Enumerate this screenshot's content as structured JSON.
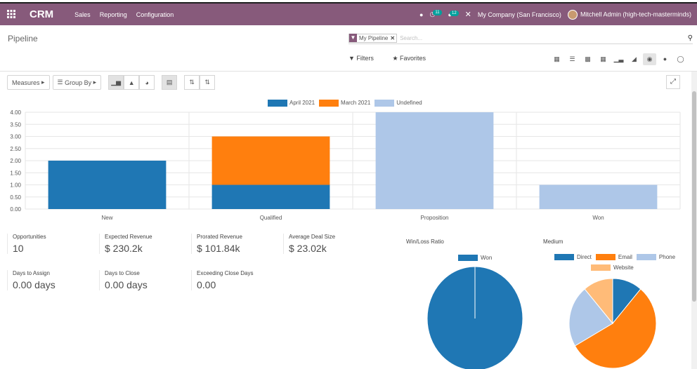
{
  "topbar": {
    "apps_icon": "grid-icon",
    "brand": "CRM",
    "menus": [
      "Sales",
      "Reporting",
      "Configuration"
    ],
    "activity_count": "11",
    "messages_count": "12",
    "company": "My Company (San Francisco)",
    "user": "Mitchell Admin (high-tech-masterminds)"
  },
  "control_panel": {
    "breadcrumb": "Pipeline",
    "facet_label": "My Pipeline",
    "search_placeholder": "Search...",
    "filters_label": "Filters",
    "favorites_label": "Favorites"
  },
  "toolbar": {
    "measures_label": "Measures",
    "groupby_label": "Group By"
  },
  "colors": {
    "brand": "#875a7b",
    "april": "#1f77b4",
    "march": "#ff7f0e",
    "undefined": "#aec7e8",
    "website": "#ffbb78"
  },
  "chart_data": {
    "type": "bar",
    "stacked": true,
    "categories": [
      "New",
      "Qualified",
      "Proposition",
      "Won"
    ],
    "series": [
      {
        "name": "April 2021",
        "values": [
          2,
          1,
          0,
          0
        ],
        "color": "#1f77b4"
      },
      {
        "name": "March 2021",
        "values": [
          0,
          2,
          0,
          0
        ],
        "color": "#ff7f0e"
      },
      {
        "name": "Undefined",
        "values": [
          0,
          0,
          4,
          1
        ],
        "color": "#aec7e8"
      }
    ],
    "ylim": [
      0,
      4
    ],
    "yticks": [
      "0.00",
      "0.50",
      "1.00",
      "1.50",
      "2.00",
      "2.50",
      "3.00",
      "3.50",
      "4.00"
    ],
    "grid": true,
    "legend": "top-center"
  },
  "kpis": [
    {
      "label": "Opportunities",
      "value": "10"
    },
    {
      "label": "Expected Revenue",
      "value": "$ 230.2k"
    },
    {
      "label": "Prorated Revenue",
      "value": "$ 101.84k"
    },
    {
      "label": "Average Deal Size",
      "value": "$ 23.02k"
    },
    {
      "label": "Days to Assign",
      "value": "0.00 days"
    },
    {
      "label": "Days to Close",
      "value": "0.00 days"
    },
    {
      "label": "Exceeding Close Days",
      "value": "0.00"
    }
  ],
  "winloss": {
    "title": "Win/Loss Ratio",
    "legend": [
      {
        "name": "Won",
        "color": "#1f77b4"
      }
    ],
    "slices": [
      {
        "name": "Won",
        "value": 1,
        "color": "#1f77b4"
      }
    ]
  },
  "medium": {
    "title": "Medium",
    "legend": [
      {
        "name": "Direct",
        "color": "#1f77b4"
      },
      {
        "name": "Email",
        "color": "#ff7f0e"
      },
      {
        "name": "Phone",
        "color": "#aec7e8"
      },
      {
        "name": "Website",
        "color": "#ffbb78"
      }
    ],
    "slices": [
      {
        "name": "Direct",
        "value": 1,
        "color": "#1f77b4"
      },
      {
        "name": "Email",
        "value": 5,
        "color": "#ff7f0e"
      },
      {
        "name": "Phone",
        "value": 2,
        "color": "#aec7e8"
      },
      {
        "name": "Website",
        "value": 1,
        "color": "#ffbb78"
      }
    ]
  }
}
